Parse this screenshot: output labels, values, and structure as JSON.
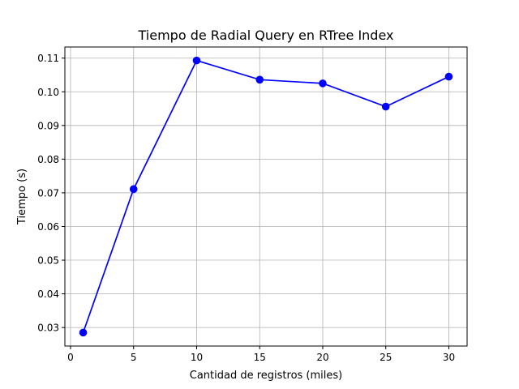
{
  "chart_data": {
    "type": "line",
    "title": "Tiempo de Radial Query en RTree Index",
    "xlabel": "Cantidad de registros (miles)",
    "ylabel": "Tiempo (s)",
    "x": [
      1,
      5,
      10,
      15,
      20,
      25,
      30
    ],
    "series": [
      {
        "values": [
          0.0285,
          0.0711,
          0.1093,
          0.1036,
          0.1025,
          0.0956,
          0.1045
        ],
        "color": "#0000ff",
        "marker": "circle"
      }
    ],
    "xticks": [
      0,
      5,
      10,
      15,
      20,
      25,
      30
    ],
    "xtick_labels": [
      "0",
      "5",
      "10",
      "15",
      "20",
      "25",
      "30"
    ],
    "yticks": [
      0.03,
      0.04,
      0.05,
      0.06,
      0.07,
      0.08,
      0.09,
      0.1,
      0.11
    ],
    "ytick_labels": [
      "0.03",
      "0.04",
      "0.05",
      "0.06",
      "0.07",
      "0.08",
      "0.09",
      "0.10",
      "0.11"
    ],
    "xlim": [
      -0.45,
      31.45
    ],
    "ylim": [
      0.0245,
      0.1133
    ],
    "grid": true,
    "legend": false
  }
}
